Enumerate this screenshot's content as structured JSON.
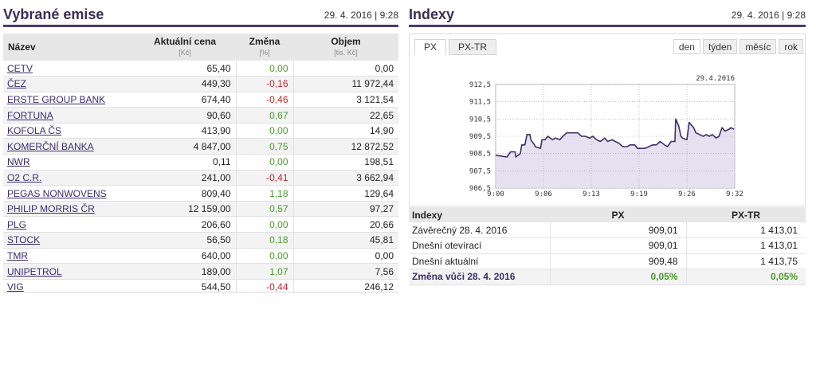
{
  "emise": {
    "title": "Vybrané emise",
    "date": "29. 4. 2016 | 9:28",
    "columns": {
      "name": "Název",
      "price": "Aktuální cena",
      "price_unit": "[Kč]",
      "change": "Změna",
      "change_unit": "[%]",
      "volume": "Objem",
      "volume_unit": "[tis. Kč]"
    },
    "rows": [
      {
        "name": "CETV",
        "price": "65,40",
        "change": "0,00",
        "volume": "0,00",
        "dir": "zero"
      },
      {
        "name": "ČEZ",
        "price": "449,30",
        "change": "-0,16",
        "volume": "11 972,44",
        "dir": "neg"
      },
      {
        "name": "ERSTE GROUP BANK",
        "price": "674,40",
        "change": "-0,46",
        "volume": "3 121,54",
        "dir": "neg"
      },
      {
        "name": "FORTUNA",
        "price": "90,60",
        "change": "0,67",
        "volume": "22,65",
        "dir": "pos"
      },
      {
        "name": "KOFOLA ČS",
        "price": "413,90",
        "change": "0,00",
        "volume": "14,90",
        "dir": "zero"
      },
      {
        "name": "KOMERČNÍ BANKA",
        "price": "4 847,00",
        "change": "0,75",
        "volume": "12 872,52",
        "dir": "pos"
      },
      {
        "name": "NWR",
        "price": "0,11",
        "change": "0,00",
        "volume": "198,51",
        "dir": "zero"
      },
      {
        "name": "O2 C.R.",
        "price": "241,00",
        "change": "-0,41",
        "volume": "3 662,94",
        "dir": "neg"
      },
      {
        "name": "PEGAS NONWOVENS",
        "price": "809,40",
        "change": "1,18",
        "volume": "129,64",
        "dir": "pos"
      },
      {
        "name": "PHILIP MORRIS ČR",
        "price": "12 159,00",
        "change": "0,57",
        "volume": "97,27",
        "dir": "pos"
      },
      {
        "name": "PLG",
        "price": "206,60",
        "change": "0,00",
        "volume": "20,66",
        "dir": "zero"
      },
      {
        "name": "STOCK",
        "price": "56,50",
        "change": "0,18",
        "volume": "45,81",
        "dir": "pos"
      },
      {
        "name": "TMR",
        "price": "640,00",
        "change": "0,00",
        "volume": "0,00",
        "dir": "zero"
      },
      {
        "name": "UNIPETROL",
        "price": "189,00",
        "change": "1,07",
        "volume": "7,56",
        "dir": "pos"
      },
      {
        "name": "VIG",
        "price": "544,50",
        "change": "-0,44",
        "volume": "246,12",
        "dir": "neg"
      }
    ]
  },
  "indexy": {
    "title": "Indexy",
    "date": "29. 4. 2016 | 9:28",
    "tabs": [
      {
        "label": "PX",
        "active": true
      },
      {
        "label": "PX-TR",
        "active": false
      }
    ],
    "periods": [
      {
        "label": "den",
        "active": true
      },
      {
        "label": "týden",
        "active": false
      },
      {
        "label": "měsíc",
        "active": false
      },
      {
        "label": "rok",
        "active": false
      }
    ],
    "table": {
      "headers": [
        "Indexy",
        "PX",
        "PX-TR"
      ],
      "rows": [
        {
          "label": "Závěrečný 28. 4. 2016",
          "px": "909,01",
          "pxtr": "1 413,01"
        },
        {
          "label": "Dnešní otevírací",
          "px": "909,01",
          "pxtr": "1 413,01"
        },
        {
          "label": "Dnešní aktuální",
          "px": "909,48",
          "pxtr": "1 413,75"
        }
      ],
      "summary": {
        "label": "Změna vůči 28. 4. 2016",
        "px": "0,05%",
        "pxtr": "0,05%"
      }
    }
  },
  "chart_data": {
    "type": "area",
    "title": "29.4.2016",
    "xlabel": "",
    "ylabel": "",
    "x_ticks": [
      "9:00",
      "9:06",
      "9:13",
      "9:19",
      "9:26",
      "9:32"
    ],
    "y_ticks": [
      "912,5",
      "911,5",
      "910,5",
      "909,5",
      "908,5",
      "907,5",
      "906,5"
    ],
    "ylim": [
      906.5,
      912.5
    ],
    "grid": true,
    "line_color": "#3d2f66",
    "fill_color": "#e6e1f0",
    "x_minutes": [
      0.0,
      1.5,
      2.0,
      2.6,
      2.7,
      3.3,
      3.5,
      3.9,
      4.2,
      4.6,
      4.7,
      5.2,
      5.3,
      6.0,
      6.2,
      6.6,
      7.0,
      7.6,
      8.0,
      8.6,
      9.0,
      9.5,
      10.0,
      10.5,
      11.0,
      11.5,
      12.0,
      12.6,
      13.0,
      13.5,
      14.0,
      14.6,
      15.0,
      15.6,
      16.0,
      16.5,
      17.0,
      17.6,
      18.0,
      18.6,
      19.0,
      19.5,
      20.0,
      20.5,
      21.0,
      21.5,
      22.0,
      22.6,
      23.0,
      23.5,
      24.0,
      24.1,
      24.5,
      24.8,
      25.0,
      25.6,
      25.9,
      26.5,
      26.8,
      27.3,
      27.8,
      28.2,
      28.6,
      29.0,
      29.5,
      29.9,
      30.3,
      30.7,
      31.2,
      31.5,
      31.9
    ],
    "y_values": [
      908.4,
      908.3,
      908.6,
      908.6,
      908.3,
      908.5,
      909.0,
      909.0,
      909.6,
      909.6,
      909.3,
      909.0,
      908.9,
      908.8,
      909.3,
      909.3,
      909.5,
      909.3,
      909.4,
      909.3,
      909.5,
      909.7,
      909.7,
      909.7,
      909.7,
      909.5,
      909.5,
      909.4,
      909.5,
      909.3,
      909.2,
      909.4,
      909.2,
      909.3,
      909.2,
      909.1,
      908.9,
      908.9,
      909.0,
      909.0,
      908.8,
      908.8,
      908.8,
      908.9,
      909.0,
      909.0,
      909.2,
      909.0,
      908.9,
      909.2,
      909.2,
      910.5,
      910.1,
      909.5,
      909.4,
      909.3,
      910.3,
      910.0,
      909.7,
      909.6,
      909.5,
      909.6,
      909.5,
      909.6,
      909.4,
      909.5,
      910.0,
      909.8,
      909.9,
      910.0,
      909.9
    ]
  }
}
